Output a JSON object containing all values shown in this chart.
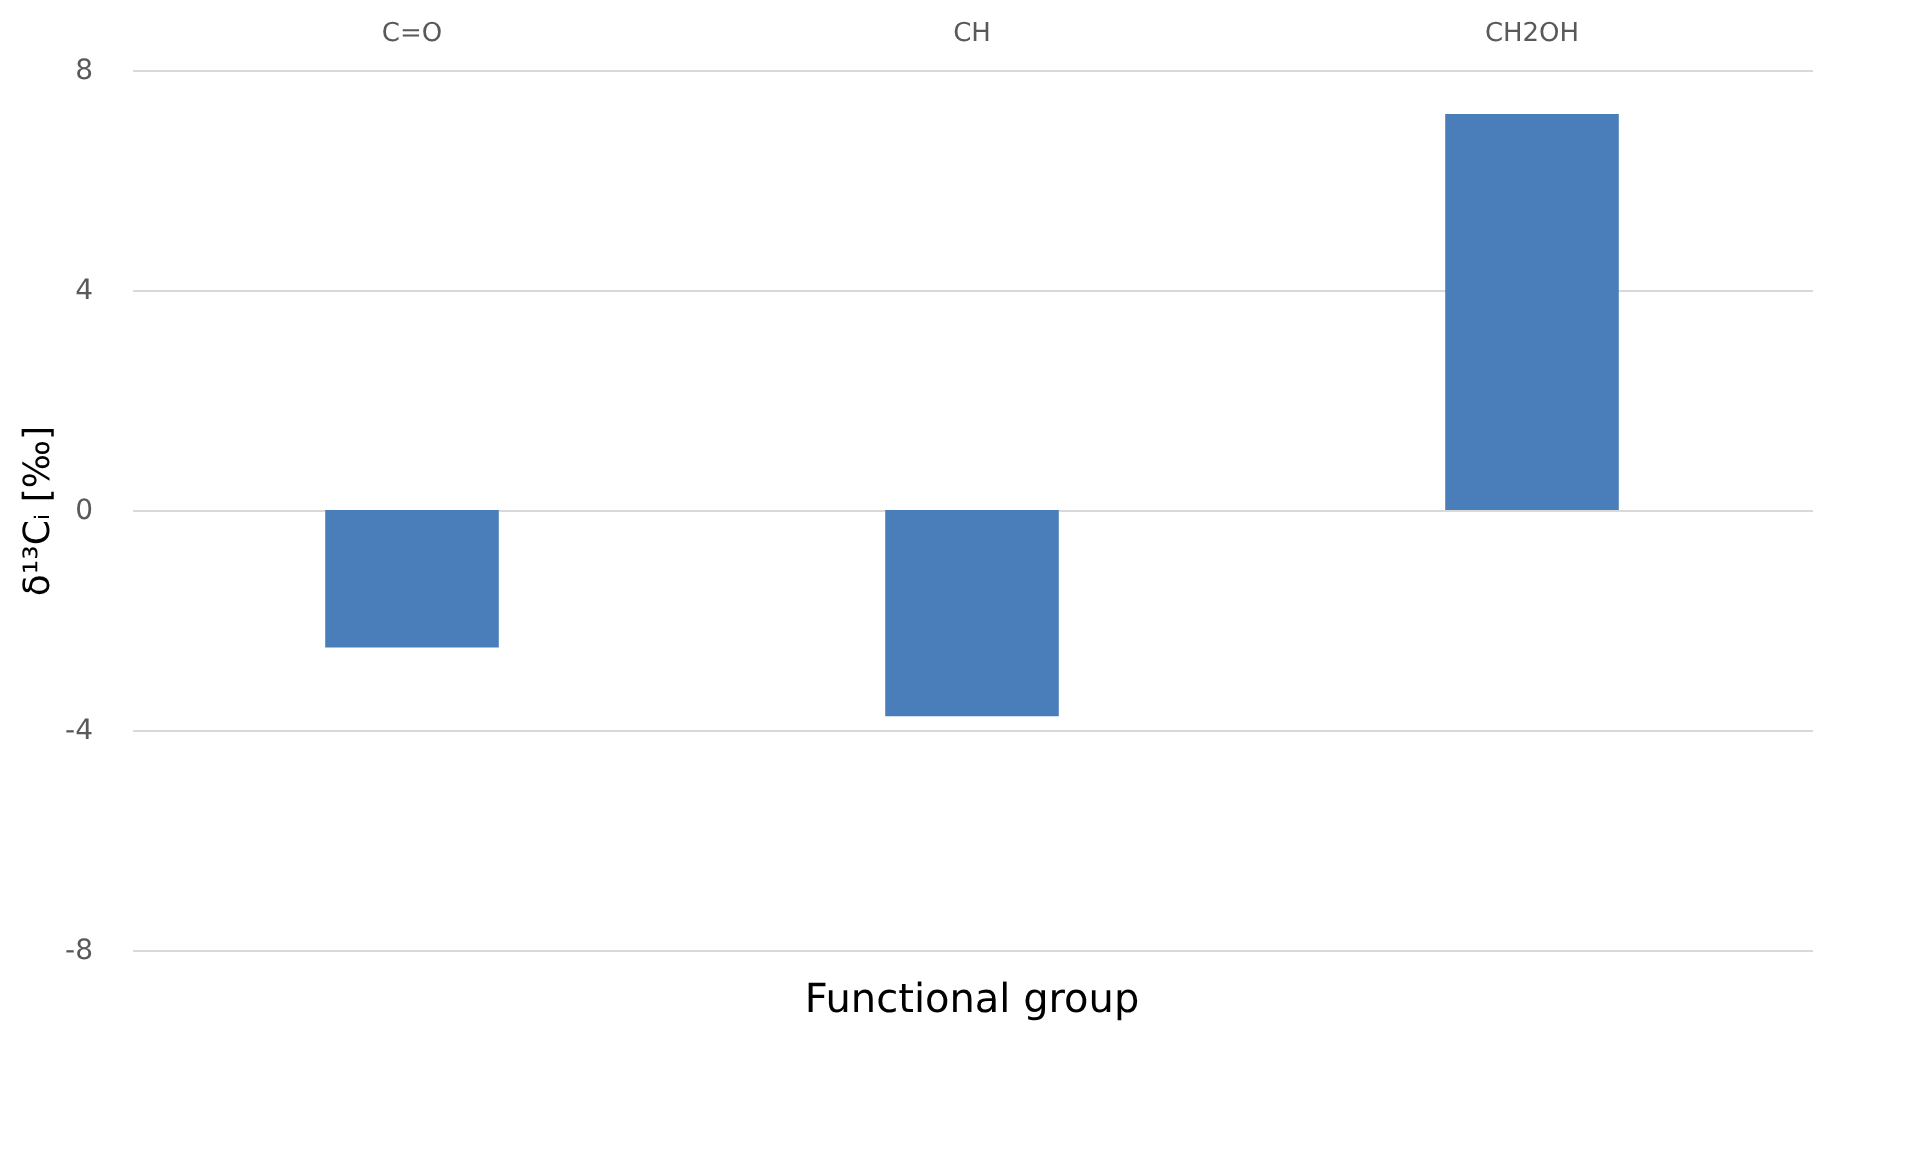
{
  "chart_data": {
    "type": "bar",
    "categories": [
      "C=O",
      "CH",
      "CH2OH"
    ],
    "values": [
      -2.5,
      -3.75,
      7.2
    ],
    "color": "#4a7ebb",
    "xlabel": "Functional group",
    "ylabel": "δ¹³Cᵢ [‰]",
    "ylim": [
      -8,
      8
    ],
    "yticks": [
      -8,
      -4,
      0,
      4,
      8
    ],
    "grid": "y"
  }
}
